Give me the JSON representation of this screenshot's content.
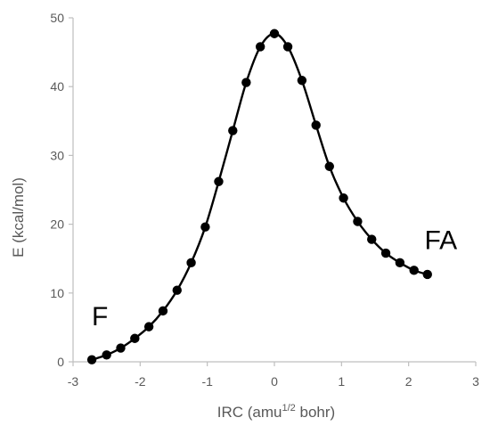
{
  "chart_data": {
    "type": "scatter",
    "title": "",
    "xlabel_parts": {
      "pre": "IRC (amu",
      "sup": "1/2",
      "post": " bohr)"
    },
    "ylabel": "E (kcal/mol)",
    "xlim": [
      -3,
      3
    ],
    "ylim": [
      0,
      50
    ],
    "x_ticks": [
      "-3",
      "-2",
      "-1",
      "0",
      "1",
      "2",
      "3"
    ],
    "y_ticks": [
      "0",
      "10",
      "20",
      "30",
      "40",
      "50"
    ],
    "x_tick_values": [
      -3,
      -2,
      -1,
      0,
      1,
      2,
      3
    ],
    "y_tick_values": [
      0,
      10,
      20,
      30,
      40,
      50
    ],
    "grid": false,
    "legend": "none",
    "series": [
      {
        "color": "#000000",
        "x": [
          -2.72,
          -2.5,
          -2.29,
          -2.08,
          -1.87,
          -1.66,
          -1.45,
          -1.24,
          -1.03,
          -0.83,
          -0.62,
          -0.42,
          -0.21,
          0.0,
          0.2,
          0.41,
          0.62,
          0.82,
          1.03,
          1.24,
          1.45,
          1.66,
          1.87,
          2.08,
          2.28
        ],
        "y": [
          0.3,
          1.0,
          2.0,
          3.4,
          5.1,
          7.4,
          10.4,
          14.4,
          19.6,
          26.2,
          33.6,
          40.6,
          45.8,
          47.7,
          45.8,
          40.9,
          34.4,
          28.4,
          23.8,
          20.4,
          17.8,
          15.8,
          14.4,
          13.3,
          12.7
        ]
      }
    ],
    "annotations": [
      {
        "text": "F",
        "x": -2.6,
        "y": 5.3
      },
      {
        "text": "FA",
        "x": 2.48,
        "y": 16.4
      }
    ]
  }
}
